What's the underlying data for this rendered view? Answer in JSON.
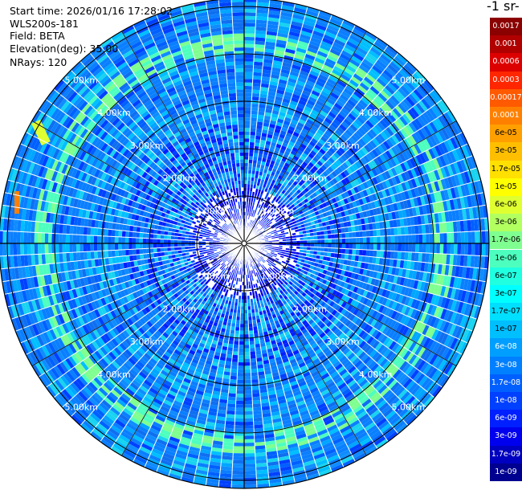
{
  "header": {
    "start_time": "Start time: 2026/01/16 17:28:02",
    "station": "WLS200s-181",
    "field": "Field: BETA",
    "elevation": "Elevation(deg): 35.00",
    "nrays": "NRays: 120"
  },
  "colorbar": {
    "unit_label": "-1 sr-",
    "levels": [
      {
        "label": "0.0017",
        "color": "#8b0000"
      },
      {
        "label": "0.001",
        "color": "#b00000"
      },
      {
        "label": "0.0006",
        "color": "#dd0000"
      },
      {
        "label": "0.0003",
        "color": "#ff2600"
      },
      {
        "label": "0.00017",
        "color": "#ff5a00"
      },
      {
        "label": "0.0001",
        "color": "#ff8000"
      },
      {
        "label": "6e-05",
        "color": "#ff9f00"
      },
      {
        "label": "3e-05",
        "color": "#ffbf00"
      },
      {
        "label": "1.7e-05",
        "color": "#ffe000"
      },
      {
        "label": "1e-05",
        "color": "#ffff00"
      },
      {
        "label": "6e-06",
        "color": "#e0ff30"
      },
      {
        "label": "3e-06",
        "color": "#b2ff60"
      },
      {
        "label": "1.7e-06",
        "color": "#7fff8f"
      },
      {
        "label": "1e-06",
        "color": "#4dffbf"
      },
      {
        "label": "6e-07",
        "color": "#20ffe0"
      },
      {
        "label": "3e-07",
        "color": "#00ffff"
      },
      {
        "label": "1.7e-07",
        "color": "#00dfff"
      },
      {
        "label": "1e-07",
        "color": "#00bfff"
      },
      {
        "label": "6e-08",
        "color": "#009fff"
      },
      {
        "label": "3e-08",
        "color": "#0080ff"
      },
      {
        "label": "1.7e-08",
        "color": "#0060ff"
      },
      {
        "label": "1e-08",
        "color": "#0040ff"
      },
      {
        "label": "6e-09",
        "color": "#0020ff"
      },
      {
        "label": "3e-09",
        "color": "#0000ee"
      },
      {
        "label": "1.7e-09",
        "color": "#0000c0"
      },
      {
        "label": "1e-09",
        "color": "#000090"
      }
    ]
  },
  "range_rings": [
    {
      "km": 1,
      "label": "1.00km"
    },
    {
      "km": 2,
      "label": "2.00km"
    },
    {
      "km": 3,
      "label": "3.00km"
    },
    {
      "km": 4,
      "label": "4.00km"
    },
    {
      "km": 5,
      "label": "5.00km"
    }
  ],
  "colors": {
    "background": "#0a7fff",
    "ring": "#000000",
    "ray_gap": "#ffffff",
    "ring_label": "#ffffff"
  }
}
